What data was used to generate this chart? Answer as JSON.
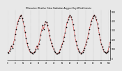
{
  "title": "Milwaukee Weather Solar Radiation Avg per Day W/m2/minute",
  "ylim": [
    -20,
    520
  ],
  "xlim": [
    0,
    105
  ],
  "background_color": "#e8e8e8",
  "plot_bg_color": "#e8e8e8",
  "line_color": "#cc0000",
  "marker_color": "#000000",
  "grid_color": "#aaaaaa",
  "data": [
    60,
    55,
    75,
    100,
    130,
    110,
    150,
    200,
    260,
    310,
    370,
    400,
    430,
    450,
    460,
    430,
    390,
    340,
    280,
    210,
    160,
    120,
    90,
    70,
    60,
    55,
    50,
    60,
    70,
    95,
    130,
    100,
    150,
    200,
    250,
    300,
    350,
    310,
    360,
    390,
    380,
    350,
    300,
    240,
    200,
    160,
    130,
    100,
    80,
    60,
    50,
    45,
    55,
    65,
    90,
    120,
    150,
    180,
    230,
    270,
    330,
    380,
    410,
    440,
    460,
    440,
    410,
    360,
    300,
    240,
    180,
    140,
    100,
    75,
    60,
    50,
    55,
    65,
    85,
    110,
    145,
    175,
    215,
    265,
    310,
    360,
    400,
    430,
    450,
    460,
    440,
    410,
    370,
    320,
    260,
    200,
    155,
    120,
    90,
    70,
    60,
    55,
    60,
    80,
    120,
    170
  ]
}
